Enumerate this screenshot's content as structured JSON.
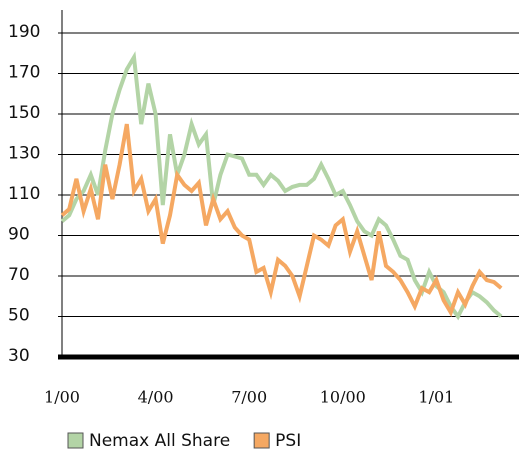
{
  "chart_data": {
    "type": "line",
    "categories": [
      "1/00",
      null,
      null,
      null,
      null,
      null,
      null,
      null,
      null,
      null,
      null,
      null,
      null,
      "4/00",
      null,
      null,
      null,
      null,
      null,
      null,
      null,
      null,
      null,
      null,
      null,
      null,
      "7/00",
      null,
      null,
      null,
      null,
      null,
      null,
      null,
      null,
      null,
      null,
      null,
      null,
      "10/00",
      null,
      null,
      null,
      null,
      null,
      null,
      null,
      null,
      null,
      null,
      null,
      null,
      "1/01",
      null,
      null,
      null,
      null,
      null,
      null,
      null,
      null,
      null
    ],
    "series": [
      {
        "name": "Nemax All Share",
        "color": "#b3d4a6",
        "values": [
          97,
          100,
          108,
          112,
          120,
          110,
          132,
          150,
          162,
          172,
          178,
          145,
          165,
          150,
          105,
          140,
          120,
          130,
          145,
          135,
          140,
          105,
          120,
          130,
          129,
          128,
          120,
          120,
          115,
          120,
          117,
          112,
          114,
          115,
          115,
          118,
          125,
          118,
          110,
          112,
          105,
          97,
          92,
          90,
          98,
          95,
          88,
          80,
          78,
          68,
          62,
          72,
          65,
          62,
          55,
          50,
          57,
          62,
          60,
          57,
          53,
          50
        ]
      },
      {
        "name": "PSI",
        "color": "#f5a862",
        "values": [
          100,
          103,
          118,
          102,
          113,
          98,
          125,
          108,
          125,
          145,
          112,
          118,
          102,
          108,
          86,
          100,
          120,
          115,
          112,
          116,
          95,
          108,
          98,
          102,
          94,
          90,
          88,
          72,
          74,
          62,
          78,
          75,
          70,
          60,
          75,
          90,
          88,
          85,
          95,
          98,
          82,
          92,
          80,
          68,
          92,
          75,
          72,
          68,
          62,
          55,
          64,
          62,
          68,
          58,
          52,
          62,
          56,
          65,
          72,
          68,
          67,
          64
        ]
      }
    ],
    "ylim": [
      30,
      190
    ],
    "yticks": [
      30,
      50,
      70,
      90,
      110,
      130,
      150,
      170,
      190
    ],
    "grid": true
  }
}
